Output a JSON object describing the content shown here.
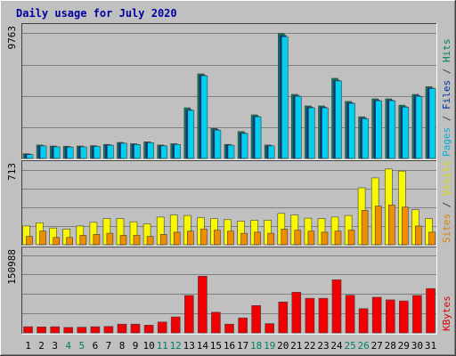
{
  "chart_data": {
    "type": "bar",
    "title": "Daily usage for July 2020",
    "days": [
      "1",
      "2",
      "3",
      "4",
      "5",
      "6",
      "7",
      "8",
      "9",
      "10",
      "11",
      "12",
      "13",
      "14",
      "15",
      "16",
      "17",
      "18",
      "19",
      "20",
      "21",
      "22",
      "23",
      "24",
      "25",
      "26",
      "27",
      "28",
      "29",
      "30",
      "31"
    ],
    "weekend_days": [
      "4",
      "5",
      "11",
      "12",
      "18",
      "19",
      "25",
      "26"
    ],
    "panels": [
      {
        "id": "hits-panel",
        "ymax_label": "9763",
        "ymax": 9763,
        "legend": [
          {
            "text": "Pages",
            "color": "#00b0d8"
          },
          {
            "text": " / ",
            "color": "#404040"
          },
          {
            "text": "Files",
            "color": "#0030a0"
          },
          {
            "text": " / ",
            "color": "#404040"
          },
          {
            "text": "Hits",
            "color": "#008060"
          }
        ],
        "series": [
          {
            "name": "Hits",
            "color": "#008060",
            "values": [
              370,
              1050,
              970,
              950,
              970,
              1000,
              1100,
              1250,
              1150,
              1300,
              1050,
              1150,
              3950,
              6600,
              2350,
              1100,
              2100,
              3400,
              1050,
              9763,
              5000,
              4100,
              4100,
              6250,
              4450,
              3250,
              4650,
              4650,
              4150,
              5000,
              5600
            ]
          },
          {
            "name": "Files",
            "color": "#0030a0",
            "values": [
              340,
              1000,
              920,
              900,
              920,
              960,
              1050,
              1200,
              1100,
              1250,
              1000,
              1100,
              3800,
              6500,
              2250,
              1050,
              2000,
              3300,
              1000,
              9600,
              4900,
              4000,
              4000,
              6100,
              4350,
              3150,
              4550,
              4550,
              4050,
              4900,
              5500
            ]
          },
          {
            "name": "Pages",
            "color": "#00d0f0",
            "values": [
              300,
              980,
              900,
              880,
              900,
              940,
              1030,
              1180,
              1080,
              1230,
              980,
              1080,
              3750,
              6450,
              2200,
              1030,
              1950,
              3250,
              980,
              9500,
              4850,
              3950,
              3950,
              6050,
              4300,
              3100,
              4500,
              4500,
              4000,
              4850,
              5450
            ]
          }
        ]
      },
      {
        "id": "visits-panel",
        "ymax_label": "713",
        "ymax": 713,
        "legend": [
          {
            "text": "Sites",
            "color": "#e08000"
          },
          {
            "text": " / ",
            "color": "#404040"
          },
          {
            "text": "Visits",
            "color": "#e0e000"
          }
        ],
        "series": [
          {
            "name": "Visits",
            "color": "#f8f800",
            "values": [
              180,
              210,
              160,
              150,
              180,
              215,
              250,
              250,
              220,
              200,
              265,
              285,
              280,
              260,
              250,
              240,
              225,
              235,
              235,
              300,
              285,
              255,
              250,
              265,
              280,
              545,
              640,
              725,
              705,
              335,
              250
            ]
          },
          {
            "name": "Sites",
            "color": "#f08c00",
            "values": [
              80,
              130,
              70,
              70,
              90,
              100,
              110,
              90,
              90,
              80,
              100,
              120,
              130,
              150,
              140,
              130,
              110,
              120,
              110,
              150,
              140,
              130,
              120,
              130,
              140,
              330,
              370,
              380,
              360,
              180,
              120
            ]
          }
        ]
      },
      {
        "id": "kbytes-panel",
        "ymax_label": "150988",
        "ymax": 150988,
        "legend": [
          {
            "text": "KBytes",
            "color": "#e00000"
          }
        ],
        "series": [
          {
            "name": "KBytes",
            "color": "#f00000",
            "values": [
              12000,
              11500,
              12000,
              10500,
              11000,
              12000,
              12500,
              17000,
              17000,
              15000,
              21000,
              31000,
              72500,
              110000,
              40000,
              17000,
              29000,
              53000,
              18000,
              60000,
              79000,
              67000,
              67000,
              103000,
              73000,
              47000,
              69000,
              64000,
              62000,
              72500,
              86000
            ]
          }
        ]
      }
    ]
  }
}
